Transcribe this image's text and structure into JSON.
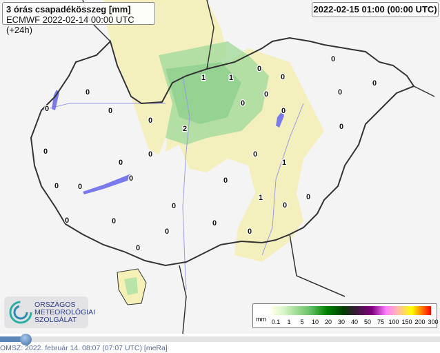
{
  "header": {
    "title": "3 órás csapadékösszeg [mm]",
    "subtitle": "ECMWF 2022-02-14 00:00 UTC (+24h)",
    "valid_time": "2022-02-15 01:00 (00:00 UTC)"
  },
  "legend": {
    "unit": "mm",
    "ticks": [
      "0.1",
      "1",
      "5",
      "10",
      "20",
      "30",
      "40",
      "50",
      "75",
      "100",
      "150",
      "200",
      "300"
    ]
  },
  "logo": {
    "lines": [
      "ORSZÁGOS",
      "METEOROLÓGIAI",
      "SZOLGÁLAT"
    ]
  },
  "footer": {
    "text": "OMSZ: 2022. február 14. 08:07 (07:07  UTC)  [meRa]"
  },
  "slider": {
    "position_fraction": 0.06
  },
  "colors": {
    "border": "#333333",
    "river": "#8a8ae8",
    "lake": "#7a7aee",
    "light_green": "#d8f0b0",
    "green": "#90d890",
    "yellow": "#f4f0b8"
  },
  "station_values": [
    "0",
    "0",
    "0",
    "0",
    "0",
    "0",
    "0",
    "0",
    "0",
    "0",
    "0",
    "0",
    "0",
    "0",
    "0",
    "1",
    "1",
    "0",
    "0",
    "0",
    "0",
    "0",
    "2",
    "0",
    "1",
    "0",
    "1",
    "0",
    "0",
    "0",
    "0",
    "0",
    "0",
    "0",
    "0"
  ]
}
